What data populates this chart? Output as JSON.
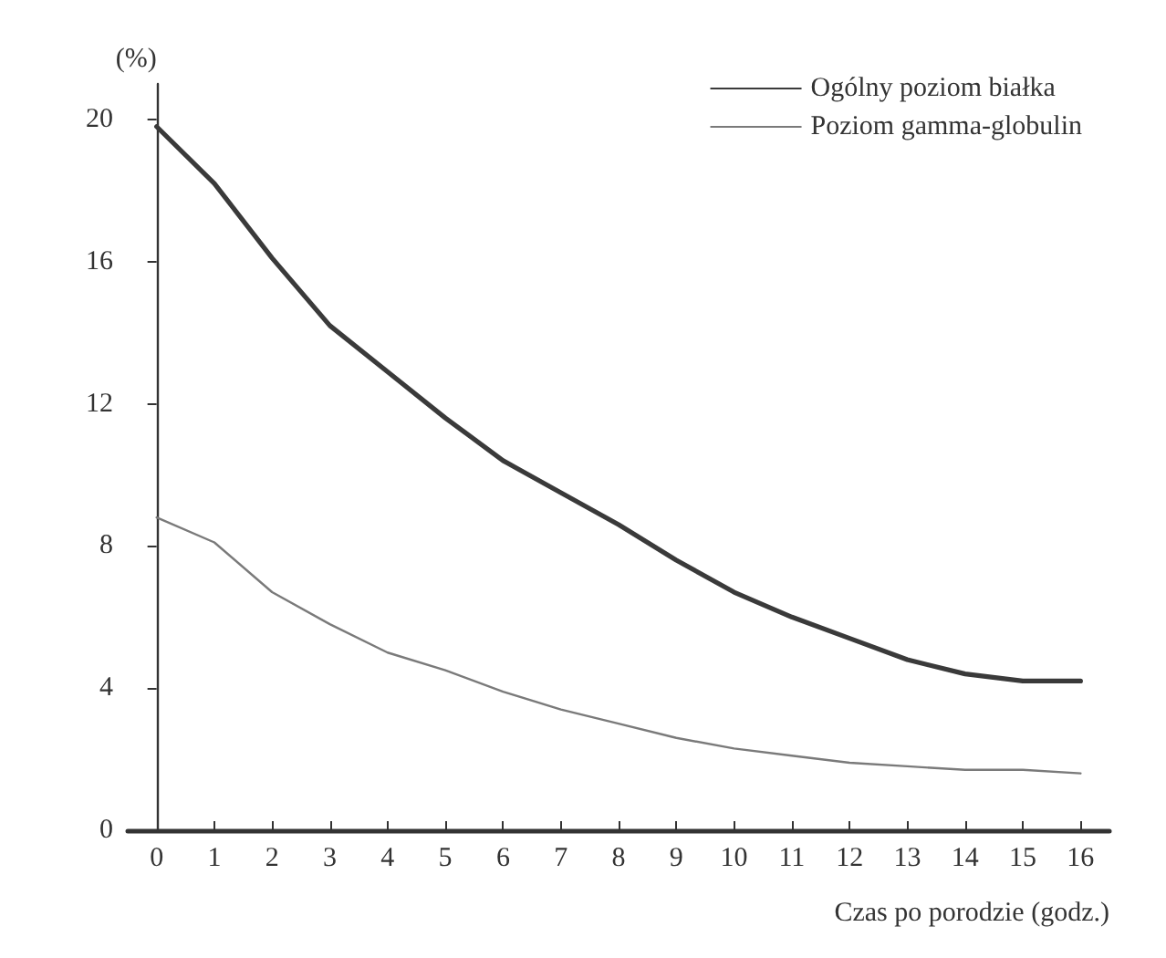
{
  "chart_data": {
    "type": "line",
    "ylabel": "(%)",
    "xlabel": "Czas po porodzie (godz.)",
    "x": [
      0,
      1,
      2,
      3,
      4,
      5,
      6,
      7,
      8,
      9,
      10,
      11,
      12,
      13,
      14,
      15,
      16
    ],
    "series": [
      {
        "name": "Ogólny poziom białka",
        "color": "#3a3a3a",
        "values": [
          19.8,
          18.2,
          16.1,
          14.2,
          12.9,
          11.6,
          10.4,
          9.5,
          8.6,
          7.6,
          6.7,
          6.0,
          5.4,
          4.8,
          4.4,
          4.2,
          4.2
        ]
      },
      {
        "name": "Poziom gamma-globulin",
        "color": "#7a7a7a",
        "values": [
          8.8,
          8.1,
          6.7,
          5.8,
          5.0,
          4.5,
          3.9,
          3.4,
          3.0,
          2.6,
          2.3,
          2.1,
          1.9,
          1.8,
          1.7,
          1.7,
          1.6
        ]
      }
    ],
    "xlim": [
      -0.5,
      16.5
    ],
    "xticks": [
      0,
      1,
      2,
      3,
      4,
      5,
      6,
      7,
      8,
      9,
      10,
      11,
      12,
      13,
      14,
      15,
      16
    ],
    "ylim": [
      0,
      21
    ],
    "yticks": [
      0,
      4,
      8,
      12,
      16,
      20
    ],
    "grid": false,
    "legend": "top right",
    "marker": "none",
    "line_style": "solid"
  }
}
